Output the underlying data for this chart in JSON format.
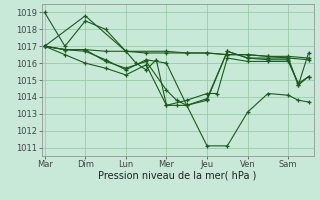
{
  "background_color": "#c8e8d8",
  "grid_color": "#99ccaa",
  "line_color": "#1a5c1a",
  "xlabel": "Pression niveau de la mer( hPa )",
  "ylim": [
    1010.5,
    1019.5
  ],
  "yticks": [
    1011,
    1012,
    1013,
    1014,
    1015,
    1016,
    1017,
    1018,
    1019
  ],
  "day_labels": [
    "Mar",
    "Dim",
    "Lun",
    "Mer",
    "Jeu",
    "Ven",
    "Sam"
  ],
  "day_positions": [
    0,
    4,
    8,
    12,
    16,
    20,
    24
  ],
  "xlim": [
    -0.3,
    26.5
  ],
  "lines": [
    {
      "x": [
        0,
        2,
        4,
        6,
        8,
        9,
        10,
        11,
        12,
        13,
        14,
        16,
        18,
        20,
        22,
        24,
        25,
        26
      ],
      "y": [
        1019.0,
        1017.0,
        1018.5,
        1018.0,
        1016.7,
        1016.0,
        1015.6,
        1016.2,
        1013.5,
        1013.5,
        1013.5,
        1011.1,
        1011.1,
        1013.1,
        1014.2,
        1014.1,
        1013.8,
        1013.7
      ]
    },
    {
      "x": [
        0,
        2,
        4,
        6,
        8,
        10,
        12,
        14,
        16,
        18,
        20,
        22,
        24,
        26
      ],
      "y": [
        1017.0,
        1016.8,
        1016.8,
        1016.7,
        1016.7,
        1016.6,
        1016.6,
        1016.6,
        1016.6,
        1016.5,
        1016.5,
        1016.4,
        1016.4,
        1016.3
      ]
    },
    {
      "x": [
        0,
        4,
        8,
        12,
        14,
        16,
        18,
        20,
        22,
        24,
        26
      ],
      "y": [
        1017.0,
        1018.8,
        1016.7,
        1016.7,
        1016.6,
        1016.6,
        1016.5,
        1016.5,
        1016.4,
        1016.3,
        1016.2
      ]
    },
    {
      "x": [
        0,
        2,
        4,
        6,
        8,
        10,
        12,
        13,
        14,
        16,
        18,
        20,
        22,
        24,
        25,
        26
      ],
      "y": [
        1017.0,
        1016.8,
        1016.8,
        1016.1,
        1015.7,
        1016.1,
        1014.4,
        1013.8,
        1013.5,
        1013.9,
        1016.7,
        1016.3,
        1016.3,
        1016.3,
        1014.7,
        1016.6
      ]
    },
    {
      "x": [
        0,
        2,
        4,
        6,
        8,
        10,
        12,
        14,
        16,
        18,
        20,
        22,
        24,
        25,
        26
      ],
      "y": [
        1017.0,
        1016.8,
        1016.7,
        1016.2,
        1015.6,
        1016.2,
        1016.0,
        1013.5,
        1013.8,
        1016.7,
        1016.3,
        1016.2,
        1016.2,
        1014.7,
        1015.2
      ]
    },
    {
      "x": [
        0,
        2,
        4,
        6,
        8,
        10,
        12,
        14,
        16,
        17,
        18,
        20,
        22,
        24,
        25,
        26
      ],
      "y": [
        1017.0,
        1016.5,
        1016.0,
        1015.7,
        1015.3,
        1015.9,
        1013.5,
        1013.8,
        1014.2,
        1014.2,
        1016.3,
        1016.1,
        1016.1,
        1016.1,
        1014.8,
        1015.2
      ]
    }
  ]
}
